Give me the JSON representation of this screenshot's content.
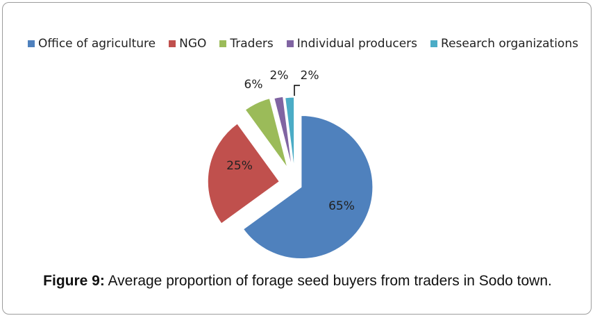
{
  "chart_data": {
    "type": "pie",
    "categories": [
      "Office of agriculture",
      "NGO",
      "Traders",
      "Individual producers",
      "Research organizations"
    ],
    "values": [
      65,
      25,
      6,
      2,
      2
    ],
    "data_labels": [
      "65%",
      "25%",
      "6%",
      "2%",
      "2%"
    ],
    "colors": [
      "#4f81bd",
      "#c0504d",
      "#9bbb59",
      "#8064a2",
      "#4bacc6"
    ],
    "legend_placement": "top",
    "exploded": true
  },
  "caption": {
    "label": "Figure 9:",
    "text": " Average proportion of forage seed buyers from traders in Sodo town."
  }
}
